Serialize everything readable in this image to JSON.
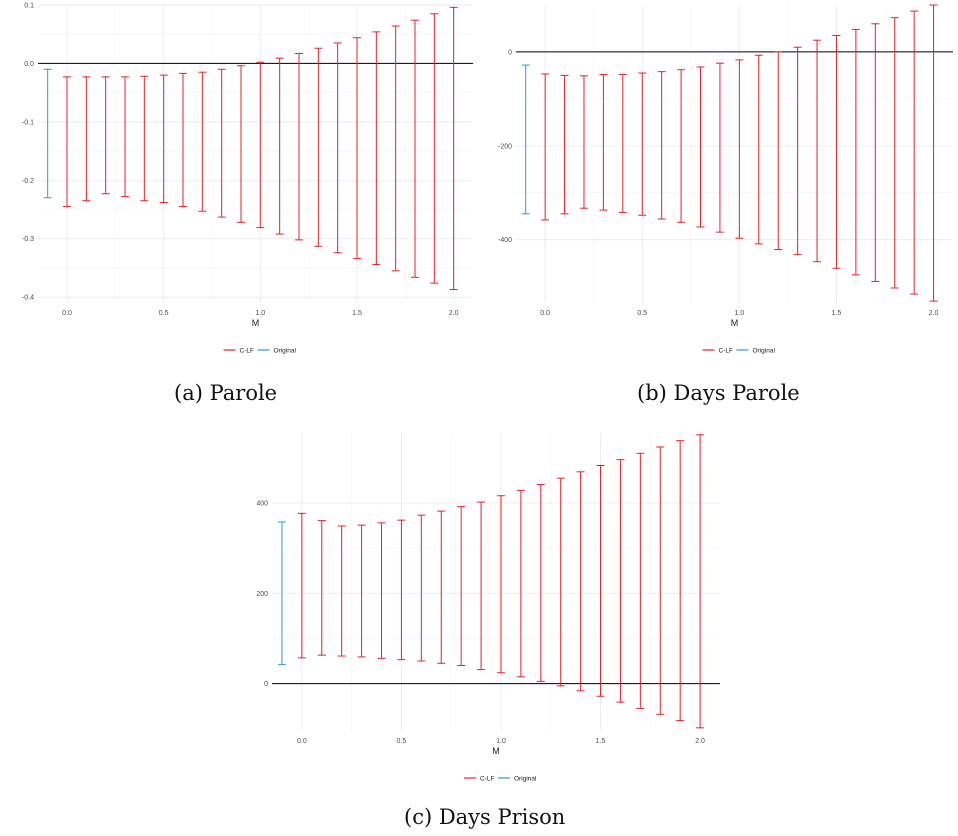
{
  "captions": [
    "(a) Parole",
    "(b) Days Parole",
    "(c) Days Prison"
  ],
  "colors": {
    "clf": "#e8202a",
    "original": "#2b9bcf",
    "zero_line": "#000000",
    "grid": "#ebebeb"
  },
  "chart_data": [
    {
      "type": "errorbar",
      "caption": "(a) Parole",
      "xlabel": "M",
      "ylabel": "",
      "xlim": [
        -0.15,
        2.1
      ],
      "ylim": [
        -0.41,
        0.1
      ],
      "x_ticks": [
        0.0,
        0.5,
        1.0,
        1.5,
        2.0
      ],
      "x_tick_labels": [
        "0.0",
        "0.5",
        "1.0",
        "1.5",
        "2.0"
      ],
      "y_ticks": [
        -0.4,
        -0.3,
        -0.2,
        -0.1,
        0.0,
        0.1
      ],
      "y_tick_labels": [
        "-0.4",
        "-0.3",
        "-0.2",
        "-0.1",
        "0.0",
        "0.1"
      ],
      "hline": 0,
      "grid": true,
      "legend": [
        "C-LF",
        "Original"
      ],
      "legend_position": "bottom",
      "series": [
        {
          "name": "Original",
          "x": [
            -0.1
          ],
          "lower": [
            -0.23
          ],
          "upper": [
            -0.01
          ]
        },
        {
          "name": "C-LF",
          "x": [
            0.0,
            0.1,
            0.2,
            0.3,
            0.4,
            0.5,
            0.6,
            0.7,
            0.8,
            0.9,
            1.0,
            1.1,
            1.2,
            1.3,
            1.4,
            1.5,
            1.6,
            1.7,
            1.8,
            1.9,
            2.0
          ],
          "lower": [
            -0.245,
            -0.235,
            -0.223,
            -0.228,
            -0.235,
            -0.238,
            -0.245,
            -0.253,
            -0.263,
            -0.272,
            -0.281,
            -0.292,
            -0.302,
            -0.313,
            -0.324,
            -0.334,
            -0.344,
            -0.355,
            -0.366,
            -0.376,
            -0.387
          ],
          "upper": [
            -0.023,
            -0.023,
            -0.023,
            -0.023,
            -0.022,
            -0.02,
            -0.017,
            -0.015,
            -0.01,
            -0.004,
            0.002,
            0.009,
            0.017,
            0.026,
            0.035,
            0.044,
            0.054,
            0.064,
            0.074,
            0.085,
            0.096
          ]
        }
      ]
    },
    {
      "type": "errorbar",
      "caption": "(b) Days Parole",
      "xlabel": "M",
      "ylabel": "",
      "xlim": [
        -0.15,
        2.1
      ],
      "ylim": [
        -535,
        100
      ],
      "x_ticks": [
        0.0,
        0.5,
        1.0,
        1.5,
        2.0
      ],
      "x_tick_labels": [
        "0.0",
        "0.5",
        "1.0",
        "1.5",
        "2.0"
      ],
      "y_ticks": [
        -400,
        -200,
        0
      ],
      "y_tick_labels": [
        "-400",
        "-200",
        "0"
      ],
      "hline": 0,
      "grid": true,
      "legend": [
        "C-LF",
        "Original"
      ],
      "legend_position": "bottom",
      "series": [
        {
          "name": "Original",
          "x": [
            -0.1
          ],
          "lower": [
            -345
          ],
          "upper": [
            -28
          ]
        },
        {
          "name": "C-LF",
          "x": [
            0.0,
            0.1,
            0.2,
            0.3,
            0.4,
            0.5,
            0.6,
            0.7,
            0.8,
            0.9,
            1.0,
            1.1,
            1.2,
            1.3,
            1.4,
            1.5,
            1.6,
            1.7,
            1.8,
            1.9,
            2.0
          ],
          "lower": [
            -358,
            -345,
            -333,
            -337,
            -342,
            -348,
            -356,
            -363,
            -373,
            -384,
            -397,
            -409,
            -421,
            -432,
            -447,
            -461,
            -475,
            -489,
            -503,
            -516,
            -531
          ],
          "upper": [
            -47,
            -50,
            -51,
            -48,
            -48,
            -45,
            -42,
            -38,
            -32,
            -24,
            -17,
            -7,
            0,
            10,
            25,
            35,
            48,
            60,
            73,
            87,
            100
          ]
        }
      ]
    },
    {
      "type": "errorbar",
      "caption": "(c) Days Prison",
      "xlabel": "M",
      "ylabel": "",
      "xlim": [
        -0.15,
        2.1
      ],
      "ylim": [
        -105,
        555
      ],
      "x_ticks": [
        0.0,
        0.5,
        1.0,
        1.5,
        2.0
      ],
      "x_tick_labels": [
        "0.0",
        "0.5",
        "1.0",
        "1.5",
        "2.0"
      ],
      "y_ticks": [
        0,
        200,
        400
      ],
      "y_tick_labels": [
        "0",
        "200",
        "400"
      ],
      "hline": 0,
      "grid": true,
      "legend": [
        "C-LF",
        "Original"
      ],
      "legend_position": "bottom",
      "series": [
        {
          "name": "Original",
          "x": [
            -0.1
          ],
          "lower": [
            42
          ],
          "upper": [
            358
          ]
        },
        {
          "name": "C-LF",
          "x": [
            0.0,
            0.1,
            0.2,
            0.3,
            0.4,
            0.5,
            0.6,
            0.7,
            0.8,
            0.9,
            1.0,
            1.1,
            1.2,
            1.3,
            1.4,
            1.5,
            1.6,
            1.7,
            1.8,
            1.9,
            2.0
          ],
          "lower": [
            57,
            63,
            61,
            59,
            56,
            53,
            50,
            45,
            40,
            31,
            24,
            15,
            5,
            -5,
            -16,
            -28,
            -41,
            -55,
            -68,
            -82,
            -98
          ],
          "upper": [
            377,
            361,
            349,
            351,
            356,
            362,
            373,
            382,
            392,
            402,
            416,
            428,
            441,
            455,
            469,
            483,
            496,
            510,
            524,
            538,
            551
          ]
        }
      ]
    }
  ]
}
